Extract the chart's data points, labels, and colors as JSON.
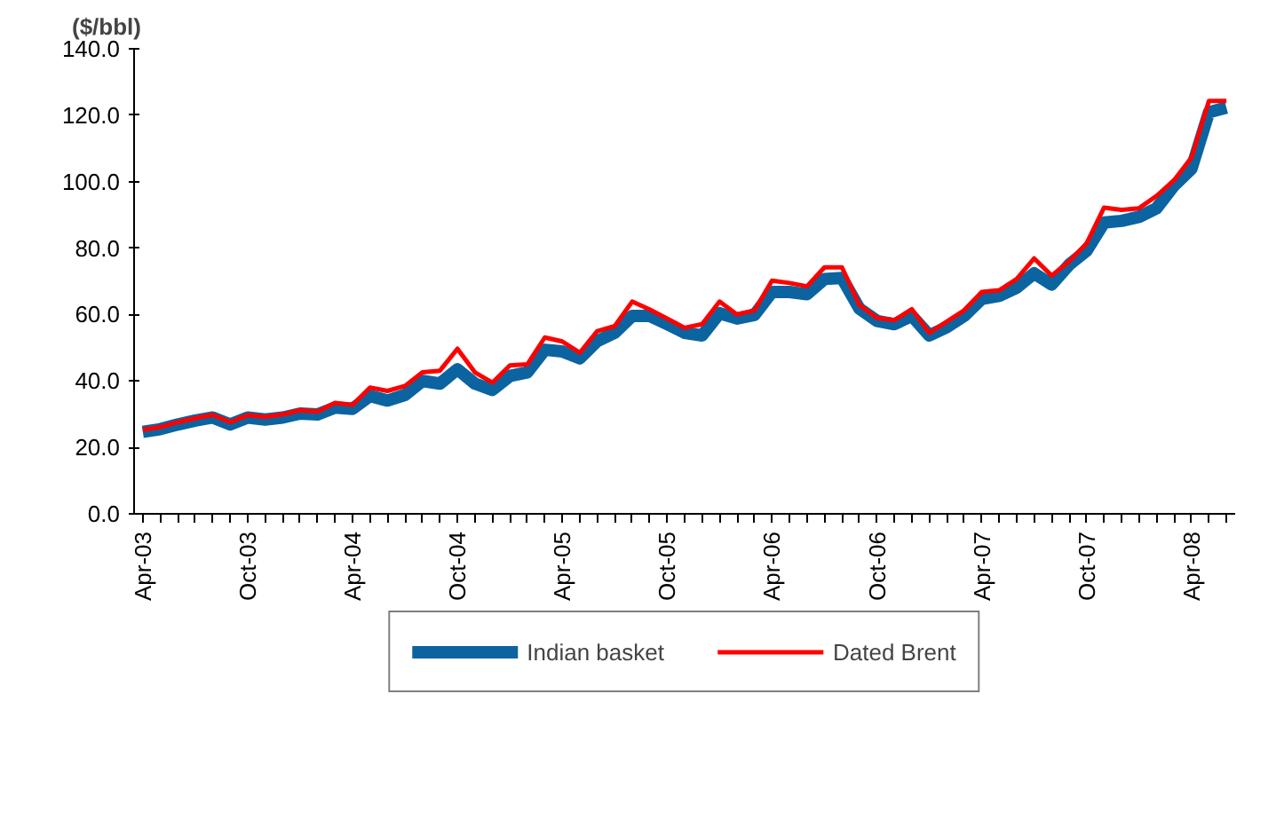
{
  "chart_data": {
    "type": "line",
    "ylabel": "($/bbl)",
    "categories": [
      "Apr-03",
      null,
      null,
      null,
      null,
      null,
      "Oct-03",
      null,
      null,
      null,
      null,
      null,
      "Apr-04",
      null,
      null,
      null,
      null,
      null,
      "Oct-04",
      null,
      null,
      null,
      null,
      null,
      "Apr-05",
      null,
      null,
      null,
      null,
      null,
      "Oct-05",
      null,
      null,
      null,
      null,
      null,
      "Apr-06",
      null,
      null,
      null,
      null,
      null,
      "Oct-06",
      null,
      null,
      null,
      null,
      null,
      "Apr-07",
      null,
      null,
      null,
      null,
      null,
      "Oct-07",
      null,
      null,
      null,
      null,
      null,
      "Apr-08",
      null,
      null
    ],
    "series": [
      {
        "name": "Indian basket",
        "color": "#0b64a0",
        "values": [
          24.7,
          25.5,
          26.9,
          28.1,
          29.0,
          26.9,
          29.0,
          28.4,
          29.0,
          30.2,
          29.9,
          32.0,
          31.6,
          35.5,
          34.1,
          35.8,
          40.0,
          39.2,
          43.5,
          39.2,
          37.3,
          41.5,
          42.6,
          49.4,
          48.9,
          46.8,
          52.0,
          54.5,
          59.6,
          59.6,
          57.1,
          54.5,
          53.7,
          60.4,
          58.8,
          59.9,
          66.8,
          66.8,
          66.1,
          70.7,
          71.0,
          61.8,
          58.1,
          57.1,
          59.6,
          53.7,
          56.2,
          59.6,
          64.7,
          65.6,
          68.1,
          72.4,
          69.0,
          75.0,
          79.2,
          87.7,
          88.2,
          89.4,
          92.0,
          98.8,
          103.9,
          120.9,
          122.3
        ]
      },
      {
        "name": "Dated Brent",
        "color": "#ff0000",
        "values": [
          25.3,
          26.1,
          27.6,
          28.8,
          29.8,
          27.6,
          29.7,
          29.2,
          29.9,
          31.2,
          30.8,
          33.4,
          32.8,
          38.0,
          37.0,
          38.5,
          42.6,
          43.1,
          49.7,
          42.6,
          39.5,
          44.7,
          45.0,
          53.1,
          51.9,
          48.5,
          55.0,
          56.5,
          63.9,
          61.5,
          58.8,
          56.0,
          57.1,
          63.9,
          60.0,
          61.3,
          70.2,
          69.5,
          68.5,
          74.2,
          74.2,
          62.9,
          59.0,
          58.3,
          61.6,
          54.5,
          57.9,
          61.3,
          66.8,
          67.3,
          70.7,
          76.9,
          71.7,
          76.0,
          81.4,
          92.2,
          91.5,
          92.0,
          95.7,
          100.4,
          107.3,
          124.3,
          124.3
        ]
      }
    ],
    "ylim": [
      0,
      140
    ],
    "yticks": [
      {
        "value": 0,
        "label": "0.0"
      },
      {
        "value": 20,
        "label": "20.0"
      },
      {
        "value": 40,
        "label": "40.0"
      },
      {
        "value": 60,
        "label": "60.0"
      },
      {
        "value": 80,
        "label": "80.0"
      },
      {
        "value": 100,
        "label": "100.0"
      },
      {
        "value": 120,
        "label": "120.0"
      },
      {
        "value": 140,
        "label": "140.0"
      }
    ],
    "grid": false,
    "legend": "bottom",
    "marker": "none",
    "line_style": "solid"
  }
}
